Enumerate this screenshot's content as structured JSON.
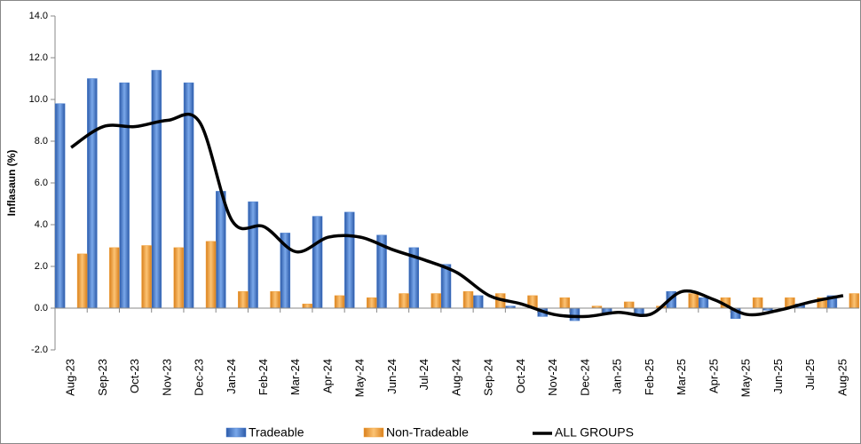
{
  "chart_data": {
    "type": "bar",
    "ylabel": "Inflasaun (%)",
    "categories": [
      "Aug-23",
      "Sep-23",
      "Oct-23",
      "Nov-23",
      "Dec-23",
      "Jan-24",
      "Feb-24",
      "Mar-24",
      "Apr-24",
      "May-24",
      "Jun-24",
      "Jul-24",
      "Aug-24",
      "Sep-24",
      "Oct-24",
      "Nov-24",
      "Dec-24",
      "Jan-25",
      "Feb-25",
      "Mar-25",
      "Apr-25",
      "May-25",
      "Jun-25",
      "Jul-25",
      "Aug-25"
    ],
    "series": [
      {
        "name": "Tradeable",
        "type": "bar",
        "color": "#4a7fcf",
        "values": [
          9.8,
          11.0,
          10.8,
          11.4,
          10.8,
          5.6,
          5.1,
          3.6,
          4.4,
          4.6,
          3.5,
          2.9,
          2.1,
          0.6,
          0.1,
          -0.4,
          -0.6,
          -0.3,
          -0.3,
          0.8,
          0.5,
          -0.5,
          -0.1,
          0.2,
          0.6
        ]
      },
      {
        "name": "Non-Tradeable",
        "type": "bar",
        "color": "#f2a13a",
        "values": [
          2.6,
          2.9,
          3.0,
          2.9,
          3.2,
          0.8,
          0.8,
          0.2,
          0.6,
          0.5,
          0.7,
          0.7,
          0.8,
          0.7,
          0.6,
          0.5,
          0.1,
          0.3,
          0.1,
          0.7,
          0.5,
          0.5,
          0.5,
          0.5,
          0.7
        ]
      },
      {
        "name": "ALL GROUPS",
        "type": "line",
        "color": "#000000",
        "values": [
          7.7,
          8.7,
          8.7,
          9.0,
          8.9,
          4.2,
          3.9,
          2.7,
          3.4,
          3.4,
          2.8,
          2.3,
          1.7,
          0.6,
          0.2,
          -0.3,
          -0.4,
          -0.2,
          -0.3,
          0.8,
          0.4,
          -0.3,
          -0.1,
          0.3,
          0.6
        ]
      }
    ],
    "ylim": [
      -2,
      14
    ],
    "yticks": [
      {
        "value": -2,
        "label": "-2.0"
      },
      {
        "value": 0,
        "label": "0.0"
      },
      {
        "value": 2,
        "label": "2.0"
      },
      {
        "value": 4,
        "label": "4.0"
      },
      {
        "value": 6,
        "label": "6.0"
      },
      {
        "value": 8,
        "label": "8.0"
      },
      {
        "value": 10,
        "label": "10.0"
      },
      {
        "value": 12,
        "label": "12.0"
      },
      {
        "value": 14,
        "label": "14.0"
      }
    ],
    "legend": "bottom"
  }
}
